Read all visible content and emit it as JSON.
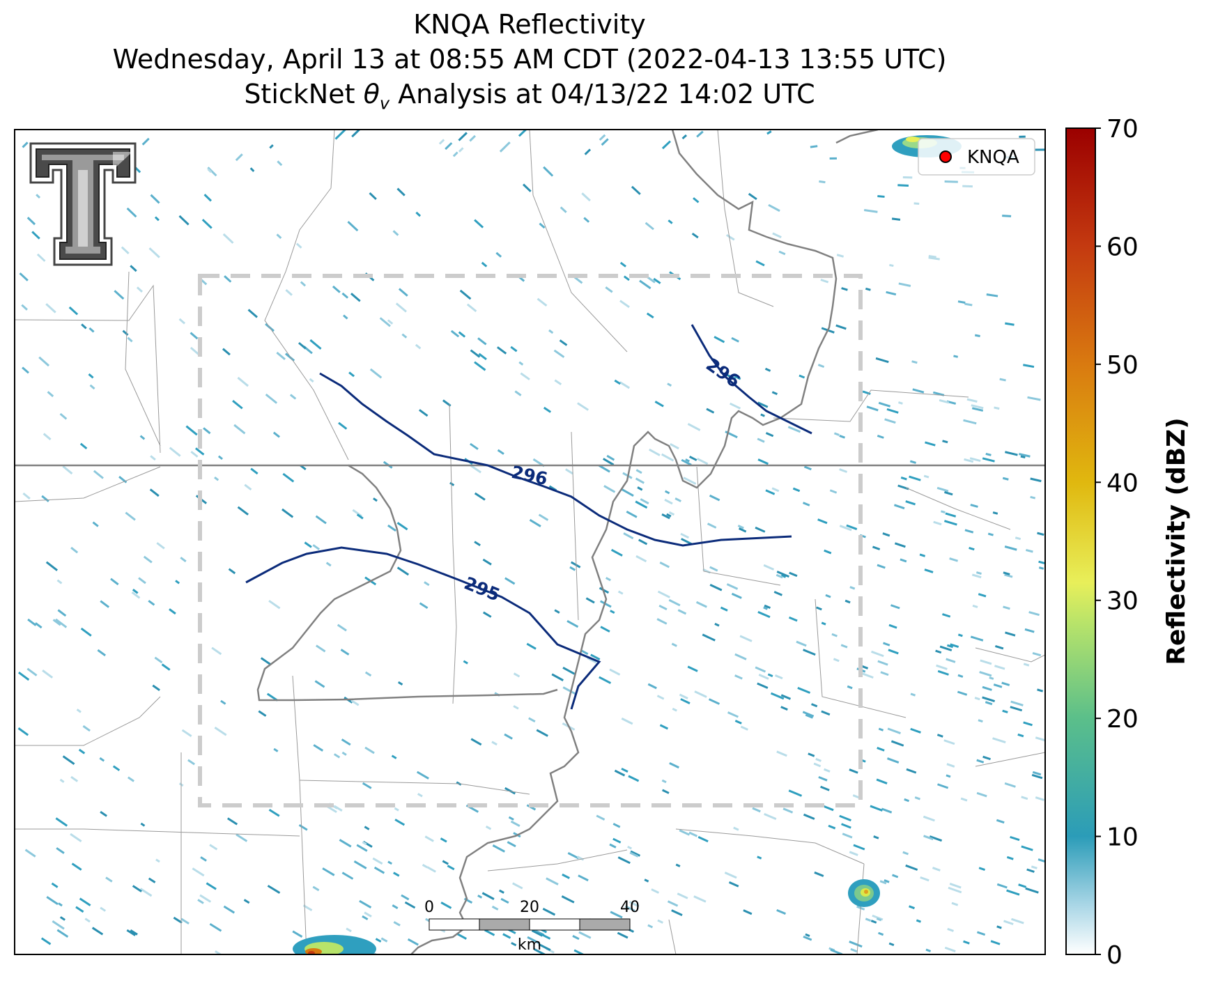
{
  "title": {
    "line1": "KNQA Reflectivity",
    "line2": "Wednesday, April 13 at 08:55 AM CDT (2022-04-13 13:55 UTC)",
    "line3_prefix": "StickNet ",
    "line3_symbol": "θ",
    "line3_subscript": "v",
    "line3_suffix": " Analysis at 04/13/22 14:02 UTC"
  },
  "legend": {
    "label": "KNQA",
    "marker_color": "#ff0000"
  },
  "contours": [
    {
      "label": "296",
      "color": "#0b2b7a"
    },
    {
      "label": "296",
      "color": "#0b2b7a"
    },
    {
      "label": "295",
      "color": "#0b2b7a"
    }
  ],
  "scale_bar": {
    "ticks": [
      "0",
      "20",
      "40"
    ],
    "unit": "km"
  },
  "colorbar": {
    "label": "Reflectivity (dBZ)",
    "min": 0,
    "max": 70,
    "ticks": [
      "0",
      "10",
      "20",
      "30",
      "40",
      "50",
      "60",
      "70"
    ],
    "colors": [
      "#ffffff",
      "#2b9cb8",
      "#5bbf8a",
      "#b7e36a",
      "#e8e84a",
      "#e8c21a",
      "#d97a10",
      "#c43a10",
      "#9b0000"
    ]
  },
  "logo": {
    "name": "texas-tech-double-t"
  },
  "colors": {
    "state_border": "#808080",
    "county_border": "#999999",
    "analysis_box": "#cccccc",
    "echo": "#2f9fbf"
  }
}
